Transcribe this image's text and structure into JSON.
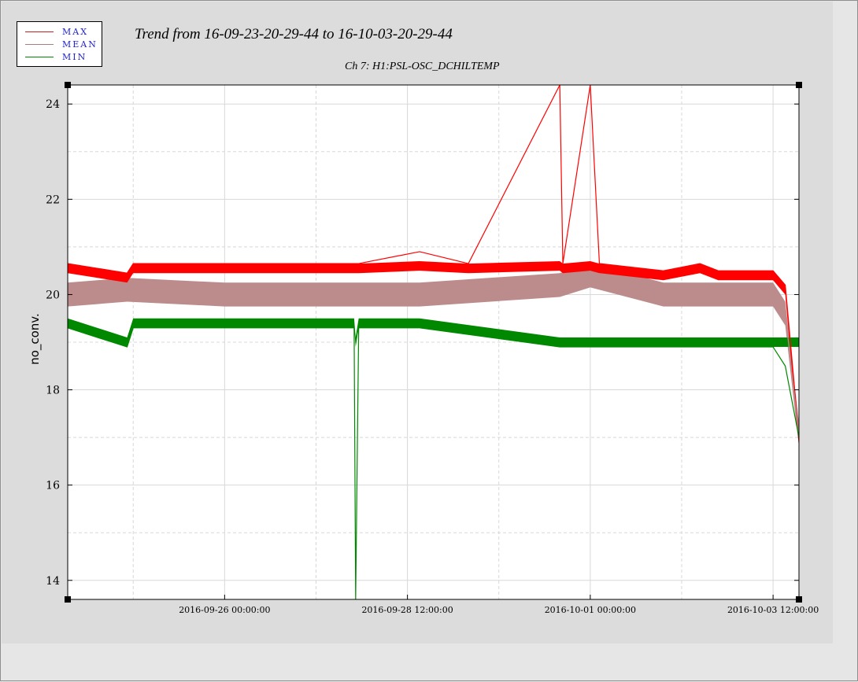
{
  "title": "Trend from 16-09-23-20-29-44 to 16-10-03-20-29-44",
  "subtitle": "Ch 7: H1:PSL-OSC_DCHILTEMP",
  "ylabel": "no_conv.",
  "legend": [
    {
      "label": "MAX",
      "color": "#cc2020"
    },
    {
      "label": "MEAN",
      "color": "#a08080"
    },
    {
      "label": "MIN",
      "color": "#008800"
    }
  ],
  "chart_data": {
    "type": "line",
    "title": "Trend from 16-09-23-20-29-44 to 16-10-03-20-29-44",
    "subtitle": "Ch 7: H1:PSL-OSC_DCHILTEMP",
    "xlabel": "",
    "ylabel": "no_conv.",
    "xlim": [
      "2016-09-23 20:29:44",
      "2016-10-03 20:29:44"
    ],
    "ylim": [
      13.6,
      24.4
    ],
    "yticks": [
      14,
      16,
      18,
      20,
      22,
      24
    ],
    "xticks": [
      "2016-09-26 00:00:00",
      "2016-09-28 12:00:00",
      "2016-10-01 00:00:00",
      "2016-10-03 12:00:00"
    ],
    "grid": true,
    "legend_position": "top-left",
    "colors": {
      "max": "#ff0000",
      "mean": "#bc8c8c",
      "min": "#008800"
    },
    "series": [
      {
        "name": "MAX",
        "x": [
          "2016-09-23 20:29:44",
          "2016-09-24 16:00:00",
          "2016-09-24 18:00:00",
          "2016-09-26 00:00:00",
          "2016-09-27 18:30:00",
          "2016-09-27 20:00:00",
          "2016-09-28 16:00:00",
          "2016-09-29 08:00:00",
          "2016-09-30 14:00:00",
          "2016-09-30 15:00:00",
          "2016-10-01 00:00:00",
          "2016-10-01 03:00:00",
          "2016-10-02 00:00:00",
          "2016-10-02 12:00:00",
          "2016-10-02 18:00:00",
          "2016-10-03 12:00:00",
          "2016-10-03 16:00:00",
          "2016-10-03 20:29:44"
        ],
        "values": [
          20.65,
          20.45,
          20.65,
          20.65,
          20.65,
          20.65,
          20.9,
          20.65,
          24.4,
          20.65,
          24.4,
          20.65,
          20.5,
          20.65,
          20.5,
          20.5,
          20.2,
          17.0
        ]
      },
      {
        "name": "MEAN",
        "x": [
          "2016-09-23 20:29:44",
          "2016-09-24 16:00:00",
          "2016-09-26 00:00:00",
          "2016-09-27 18:30:00",
          "2016-09-28 16:00:00",
          "2016-09-30 14:00:00",
          "2016-10-01 00:00:00",
          "2016-10-02 00:00:00",
          "2016-10-03 12:00:00",
          "2016-10-03 16:00:00",
          "2016-10-03 20:29:44"
        ],
        "values": [
          20.0,
          20.1,
          20.0,
          20.0,
          20.0,
          20.2,
          20.4,
          20.0,
          20.0,
          19.6,
          17.05
        ]
      },
      {
        "name": "MIN",
        "x": [
          "2016-09-23 20:29:44",
          "2016-09-24 16:00:00",
          "2016-09-24 18:00:00",
          "2016-09-26 00:00:00",
          "2016-09-27 18:30:00",
          "2016-09-27 19:00:00",
          "2016-09-27 20:00:00",
          "2016-09-28 16:00:00",
          "2016-09-30 14:00:00",
          "2016-10-01 00:00:00",
          "2016-10-02 00:00:00",
          "2016-10-02 12:00:00",
          "2016-10-03 12:00:00",
          "2016-10-03 16:00:00",
          "2016-10-03 20:29:44"
        ],
        "values": [
          19.3,
          18.9,
          19.3,
          19.3,
          19.3,
          13.6,
          19.3,
          19.3,
          18.9,
          18.9,
          18.9,
          18.9,
          18.9,
          18.5,
          17.0
        ]
      }
    ]
  }
}
